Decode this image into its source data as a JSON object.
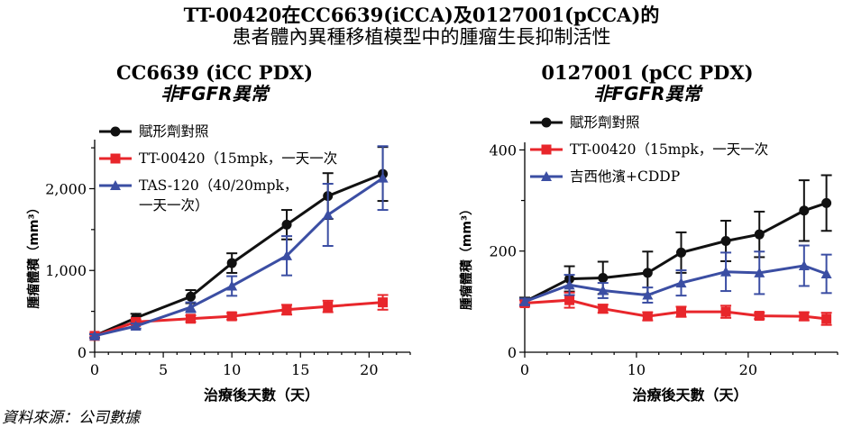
{
  "header": {
    "title_line1": "TT-00420在CC6639(iCCA)及0127001(pCCA)的",
    "title_line2": "患者體內異種移植模型中的腫瘤生長抑制活性"
  },
  "footer": {
    "source": "資料來源：公司數據"
  },
  "colors": {
    "black": "#111111",
    "red": "#e8262b",
    "blue": "#3b4ea3"
  },
  "chart_data": [
    {
      "type": "line",
      "title": "CC6639 (iCC PDX)",
      "subtitle": "非FGFR異常",
      "xlabel": "治療後天數（天）",
      "ylabel": "腫瘤體積（mm³）",
      "xlim": [
        0,
        23
      ],
      "ylim": [
        0,
        2600
      ],
      "xticks": [
        0,
        5,
        10,
        15,
        20
      ],
      "yticks": [
        0,
        1000,
        2000
      ],
      "ytick_labels": [
        "0",
        "1,000",
        "2,000"
      ],
      "legend_position": "top-left",
      "series": [
        {
          "name": "賦形劑對照",
          "color": "#111111",
          "x": [
            0,
            3,
            7,
            10,
            14,
            17,
            21
          ],
          "y": [
            200,
            420,
            680,
            1090,
            1560,
            1910,
            2180
          ],
          "err": [
            25,
            50,
            80,
            120,
            180,
            280,
            330
          ]
        },
        {
          "name": "TT-00420（15mpk，一天一次",
          "color": "#e8262b",
          "x": [
            0,
            3,
            7,
            10,
            14,
            17,
            21
          ],
          "y": [
            200,
            370,
            410,
            440,
            520,
            560,
            610
          ],
          "err": [
            20,
            30,
            40,
            40,
            60,
            70,
            90
          ]
        },
        {
          "name": "TAS-120（40/20mpk，一天一次）",
          "color": "#3b4ea3",
          "x": [
            0,
            3,
            7,
            10,
            14,
            17,
            21
          ],
          "y": [
            200,
            320,
            550,
            810,
            1180,
            1680,
            2130
          ],
          "err": [
            20,
            30,
            60,
            120,
            240,
            380,
            390
          ]
        }
      ]
    },
    {
      "type": "line",
      "title": "0127001 (pCC PDX)",
      "subtitle": "非FGFR異常",
      "xlabel": "治療後天數（天）",
      "ylabel": "腫瘤體積（mm³）",
      "xlim": [
        0,
        28
      ],
      "ylim": [
        0,
        415
      ],
      "xticks": [
        0,
        10,
        20
      ],
      "yticks": [
        0,
        200,
        400
      ],
      "ytick_labels": [
        "0",
        "200",
        "400"
      ],
      "legend_position": "top-left",
      "series": [
        {
          "name": "賦形劑對照",
          "color": "#111111",
          "x": [
            0,
            4,
            7,
            11,
            14,
            18,
            21,
            25,
            27
          ],
          "y": [
            100,
            145,
            147,
            157,
            197,
            220,
            233,
            280,
            295
          ],
          "err": [
            8,
            25,
            32,
            42,
            40,
            40,
            45,
            60,
            55
          ]
        },
        {
          "name": "TT-00420（15mpk，一天一次",
          "color": "#e8262b",
          "x": [
            0,
            4,
            7,
            11,
            14,
            18,
            21,
            25,
            27
          ],
          "y": [
            97,
            103,
            86,
            71,
            80,
            80,
            72,
            71,
            66
          ],
          "err": [
            6,
            15,
            8,
            8,
            10,
            12,
            6,
            8,
            12
          ]
        },
        {
          "name": "吉西他濱+CDDP",
          "color": "#3b4ea3",
          "x": [
            0,
            4,
            7,
            11,
            14,
            18,
            21,
            25,
            27
          ],
          "y": [
            100,
            133,
            122,
            113,
            137,
            159,
            157,
            171,
            155
          ],
          "err": [
            6,
            20,
            15,
            15,
            25,
            38,
            42,
            40,
            38
          ]
        }
      ]
    }
  ]
}
